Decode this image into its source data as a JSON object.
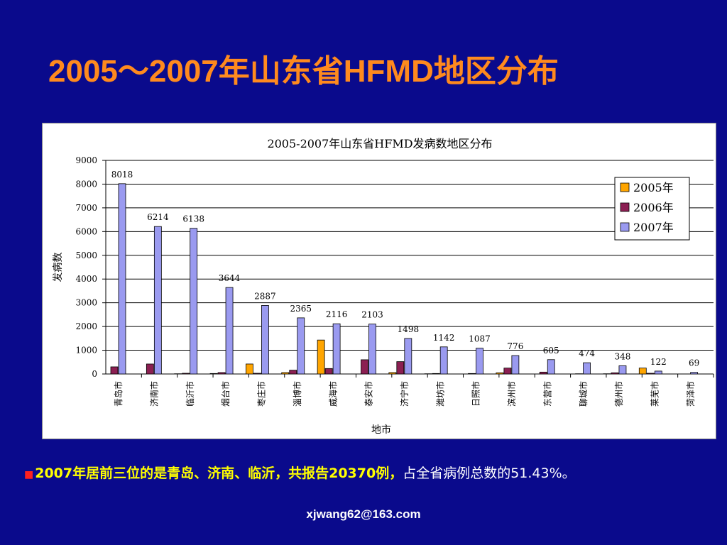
{
  "slide": {
    "title": "2005～2007年山东省HFMD地区分布",
    "note_prefix": "2007年居前三位的是青岛、济南、临沂，共报告20370例，",
    "note_suffix": "占全省病例总数的51.43%。",
    "footer": "xjwang62@163.com"
  },
  "colors": {
    "background": "#0a0a8c",
    "title": "#ff8a1e",
    "s2005": "#ffa500",
    "s2006": "#8b1f52",
    "s2007": "#9a9af0"
  },
  "chart_data": {
    "type": "bar",
    "title": "2005-2007年山东省HFMD发病数地区分布",
    "xlabel": "地市",
    "ylabel": "发病数",
    "ylim": [
      0,
      9000
    ],
    "yticks": [
      0,
      1000,
      2000,
      3000,
      4000,
      5000,
      6000,
      7000,
      8000,
      9000
    ],
    "grid": true,
    "legend_position": "top-right",
    "categories": [
      "青岛市",
      "济南市",
      "临沂市",
      "烟台市",
      "枣庄市",
      "淄博市",
      "威海市",
      "泰安市",
      "济宁市",
      "潍坊市",
      "日照市",
      "滨州市",
      "东营市",
      "聊城市",
      "德州市",
      "莱芜市",
      "菏泽市"
    ],
    "series": [
      {
        "name": "2005年",
        "values": [
          0,
          0,
          10,
          20,
          420,
          60,
          1430,
          0,
          60,
          10,
          0,
          50,
          0,
          0,
          10,
          250,
          0
        ]
      },
      {
        "name": "2006年",
        "values": [
          300,
          420,
          30,
          60,
          30,
          160,
          230,
          600,
          520,
          20,
          20,
          250,
          80,
          10,
          50,
          30,
          0
        ]
      },
      {
        "name": "2007年",
        "values": [
          8018,
          6214,
          6138,
          3644,
          2887,
          2365,
          2116,
          2103,
          1498,
          1142,
          1087,
          776,
          605,
          474,
          348,
          122,
          69
        ],
        "labels": [
          "8018",
          "6214",
          "6138",
          "3644",
          "2887",
          "2365",
          "2116",
          "2103",
          "1498",
          "1142",
          "1087",
          "776",
          "605",
          "474",
          "348",
          "122",
          "69"
        ]
      }
    ]
  }
}
